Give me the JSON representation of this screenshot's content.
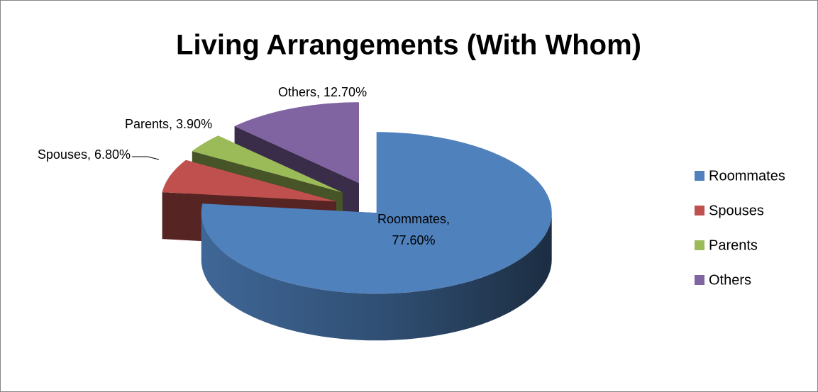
{
  "chart_data": {
    "type": "pie3d",
    "title": "Living Arrangements (With Whom)",
    "categories": [
      "Roommates",
      "Spouses",
      "Parents",
      "Others"
    ],
    "values": [
      77.6,
      6.8,
      3.9,
      12.7
    ],
    "value_labels": [
      "Roommates, 77.60%",
      "Spouses, 6.80%",
      "Parents, 3.90%",
      "Others, 12.70%"
    ],
    "colors": [
      "#4f81bd",
      "#c0504d",
      "#9bbb59",
      "#8064a2"
    ],
    "legend": "right"
  }
}
